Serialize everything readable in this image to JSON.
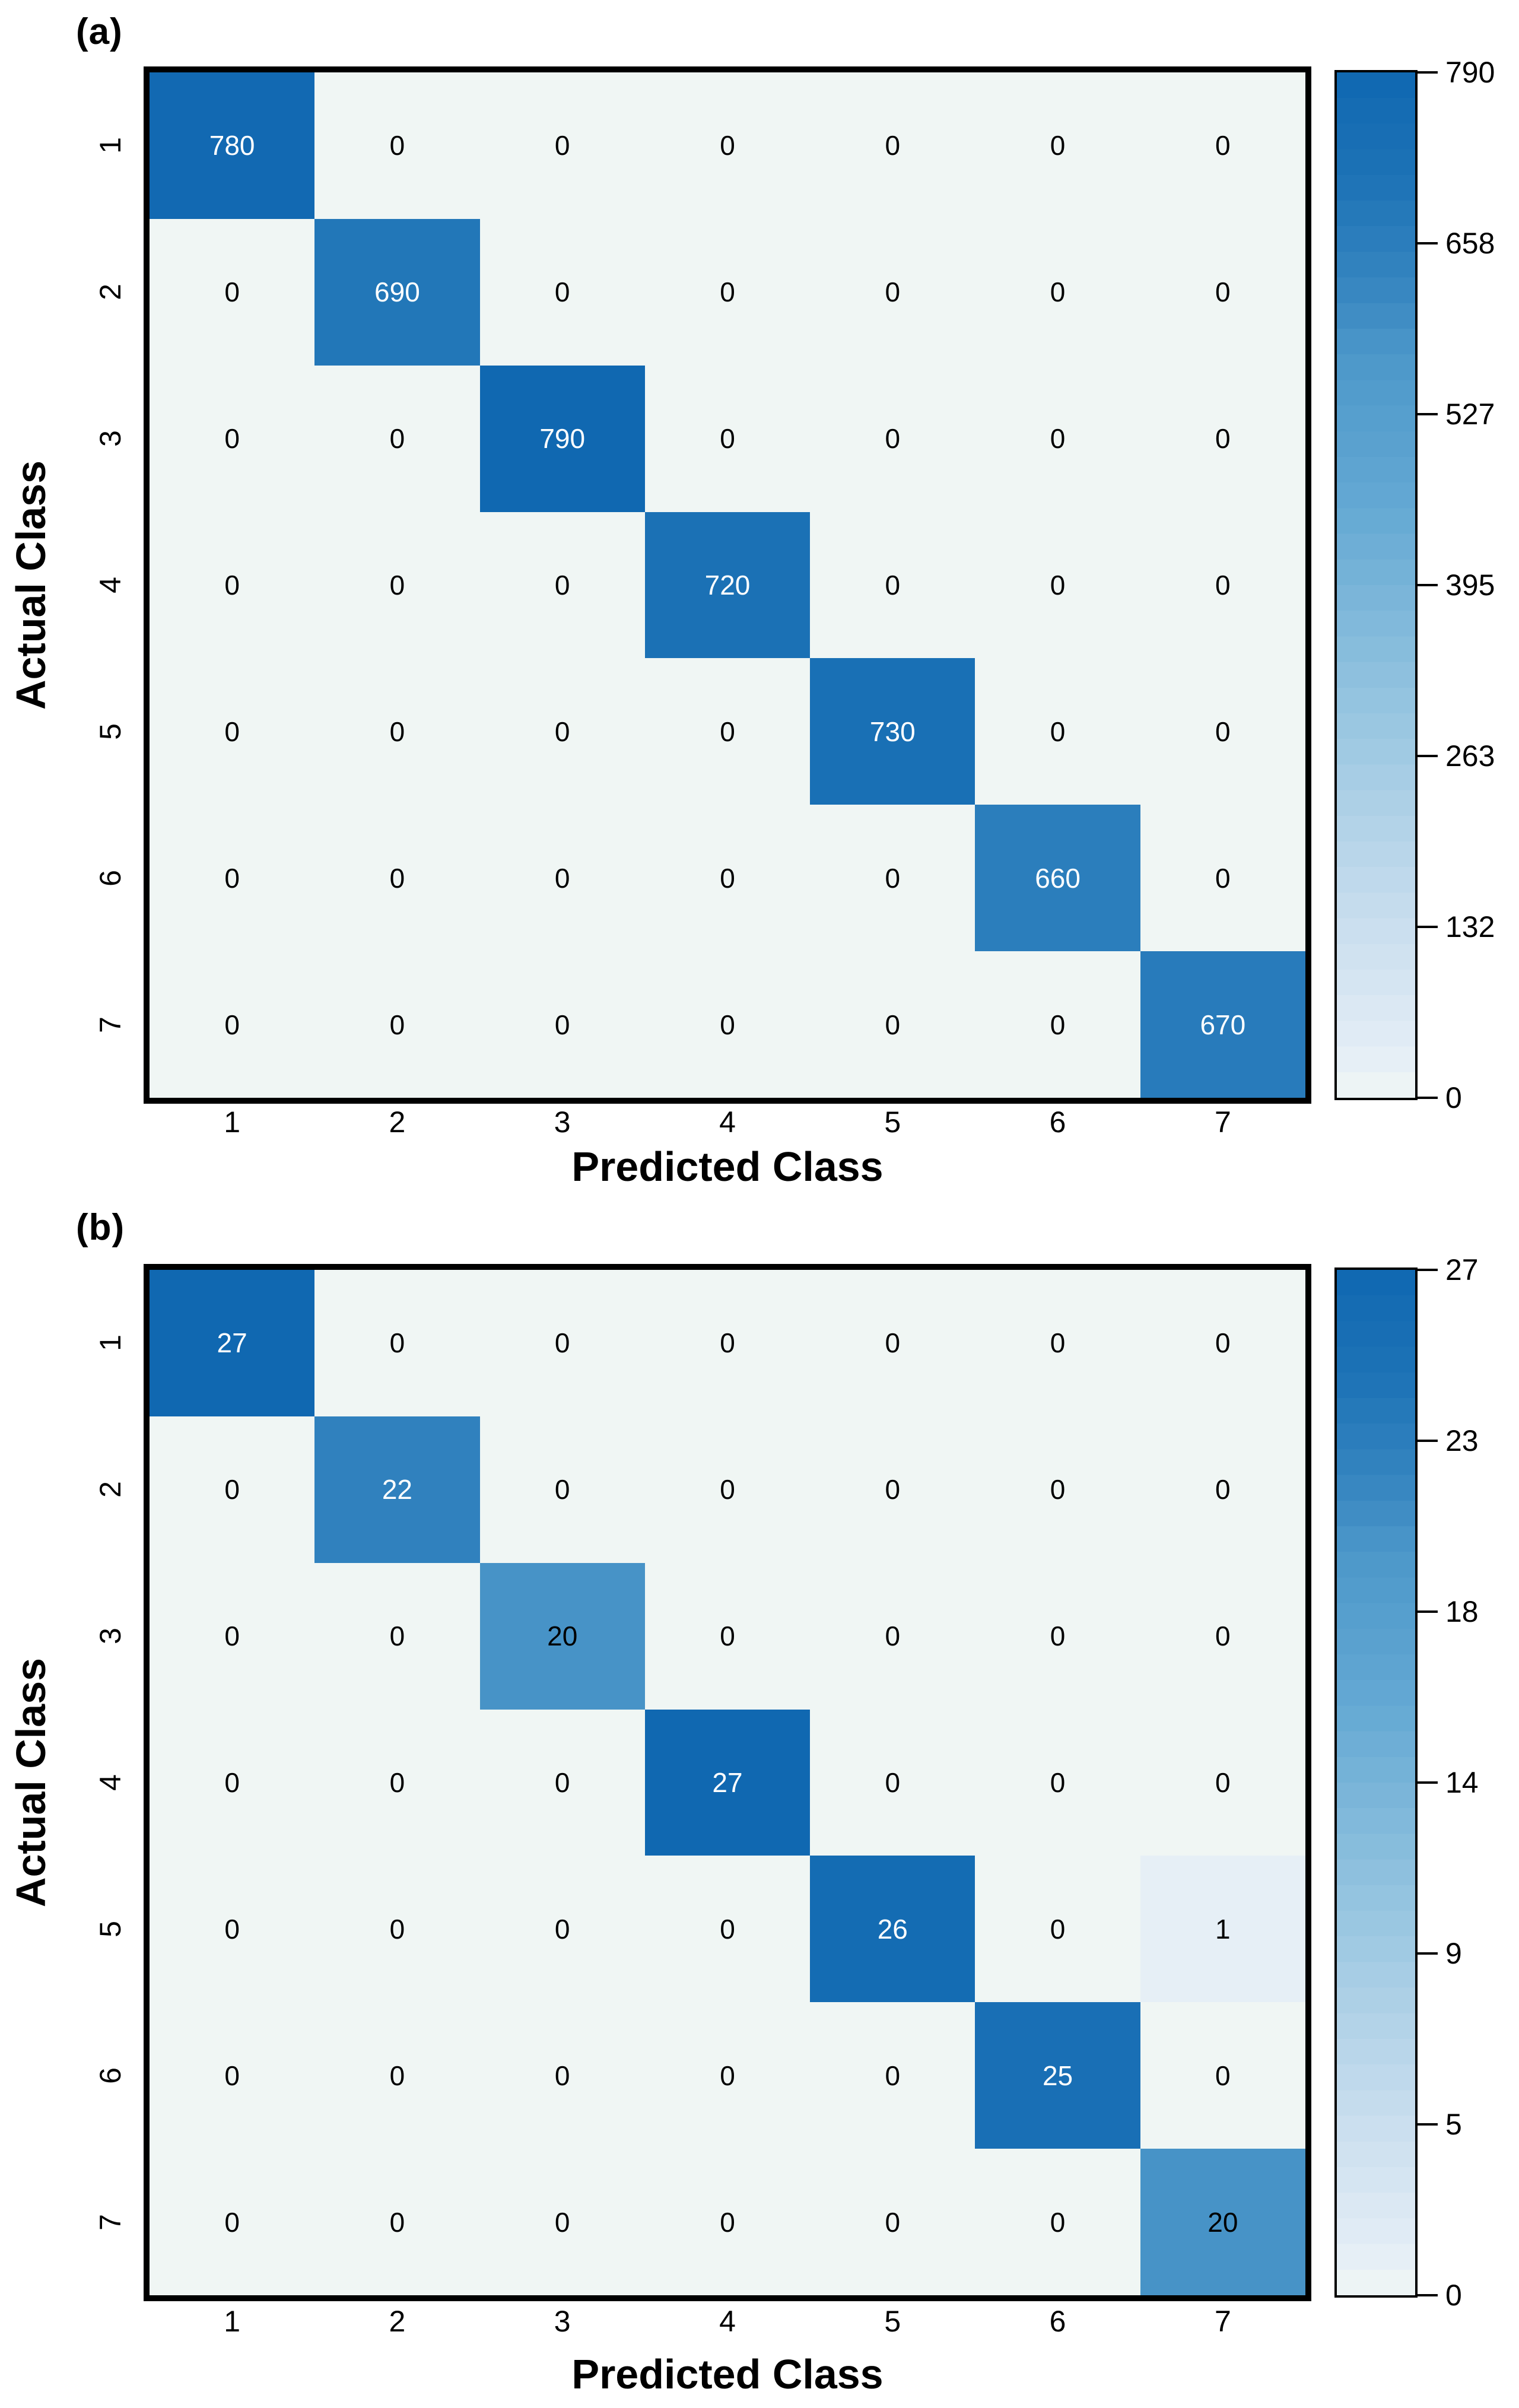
{
  "figure": {
    "background": "#ffffff"
  },
  "chart_data": [
    {
      "type": "heatmap",
      "panel_label": "(a)",
      "xlabel": "Predicted Class",
      "ylabel": "Actual Class",
      "x_tick_labels": [
        "1",
        "2",
        "3",
        "4",
        "5",
        "6",
        "7"
      ],
      "y_tick_labels": [
        "1",
        "2",
        "3",
        "4",
        "5",
        "6",
        "7"
      ],
      "matrix": [
        [
          780,
          0,
          0,
          0,
          0,
          0,
          0
        ],
        [
          0,
          690,
          0,
          0,
          0,
          0,
          0
        ],
        [
          0,
          0,
          790,
          0,
          0,
          0,
          0
        ],
        [
          0,
          0,
          0,
          720,
          0,
          0,
          0
        ],
        [
          0,
          0,
          0,
          0,
          730,
          0,
          0
        ],
        [
          0,
          0,
          0,
          0,
          0,
          660,
          0
        ],
        [
          0,
          0,
          0,
          0,
          0,
          0,
          670
        ]
      ],
      "vmin": 0,
      "vmax": 790,
      "colorbar_ticks": [
        790,
        658,
        527,
        395,
        263,
        132,
        0
      ],
      "colormap": "Blues",
      "legend_position": "right-colorbar",
      "grid": false
    },
    {
      "type": "heatmap",
      "panel_label": "(b)",
      "xlabel": "Predicted Class",
      "ylabel": "Actual Class",
      "x_tick_labels": [
        "1",
        "2",
        "3",
        "4",
        "5",
        "6",
        "7"
      ],
      "y_tick_labels": [
        "1",
        "2",
        "3",
        "4",
        "5",
        "6",
        "7"
      ],
      "matrix": [
        [
          27,
          0,
          0,
          0,
          0,
          0,
          0
        ],
        [
          0,
          22,
          0,
          0,
          0,
          0,
          0
        ],
        [
          0,
          0,
          20,
          0,
          0,
          0,
          0
        ],
        [
          0,
          0,
          0,
          27,
          0,
          0,
          0
        ],
        [
          0,
          0,
          0,
          0,
          26,
          0,
          1
        ],
        [
          0,
          0,
          0,
          0,
          0,
          25,
          0
        ],
        [
          0,
          0,
          0,
          0,
          0,
          0,
          20
        ]
      ],
      "vmin": 0,
      "vmax": 27,
      "colorbar_ticks": [
        27,
        23,
        18,
        14,
        9,
        5,
        0
      ],
      "colormap": "Blues",
      "legend_position": "right-colorbar",
      "grid": false
    }
  ],
  "colors": {
    "background": "#ffffff",
    "border": "#000000",
    "text_on_dark": "#ffffff",
    "text_on_light": "#000000",
    "cell_min": "#f0f6f4",
    "cell_max": "#1068b1",
    "ramp": [
      [
        0.0,
        "#f0f6f4"
      ],
      [
        0.04,
        "#e5eef6"
      ],
      [
        0.18,
        "#c7ddee"
      ],
      [
        0.38,
        "#96c5e0"
      ],
      [
        0.58,
        "#63a8d3"
      ],
      [
        0.72,
        "#4d98ca"
      ],
      [
        0.8,
        "#3484bf"
      ],
      [
        0.9,
        "#1c72b6"
      ],
      [
        1.0,
        "#1068b1"
      ]
    ],
    "white_text_threshold": 0.79
  }
}
